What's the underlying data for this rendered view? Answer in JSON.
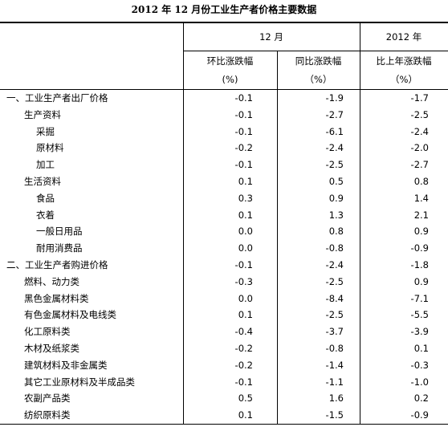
{
  "title": "2012 年 12 月份工业生产者价格主要数据",
  "header": {
    "group_month": "12 月",
    "group_year": "2012 年",
    "columns": [
      "环比涨跌幅",
      "同比涨跌幅",
      "比上年涨跌幅"
    ],
    "units": [
      "(%)",
      "（%）",
      "（%）"
    ]
  },
  "table": {
    "rows": [
      [
        "一、工业生产者出厂价格",
        "-0.1",
        "-1.9",
        "-1.7"
      ],
      [
        "生产资料",
        "-0.1",
        "-2.7",
        "-2.5"
      ],
      [
        "采掘",
        "-0.1",
        "-6.1",
        "-2.4"
      ],
      [
        "原材料",
        "-0.2",
        "-2.4",
        "-2.0"
      ],
      [
        "加工",
        "-0.1",
        "-2.5",
        "-2.7"
      ],
      [
        "生活资料",
        "0.1",
        "0.5",
        "0.8"
      ],
      [
        "食品",
        "0.3",
        "0.9",
        "1.4"
      ],
      [
        "衣着",
        "0.1",
        "1.3",
        "2.1"
      ],
      [
        "一般日用品",
        "0.0",
        "0.8",
        "0.9"
      ],
      [
        "耐用消费品",
        "0.0",
        "-0.8",
        "-0.9"
      ],
      [
        "二、工业生产者购进价格",
        "-0.1",
        "-2.4",
        "-1.8"
      ],
      [
        "燃料、动力类",
        "-0.3",
        "-2.5",
        "0.9"
      ],
      [
        "黑色金属材料类",
        "0.0",
        "-8.4",
        "-7.1"
      ],
      [
        "有色金属材料及电线类",
        "0.1",
        "-2.5",
        "-5.5"
      ],
      [
        "化工原料类",
        "-0.4",
        "-3.7",
        "-3.9"
      ],
      [
        "木材及纸浆类",
        "-0.2",
        "-0.8",
        "0.1"
      ],
      [
        "建筑材料及非金属类",
        "-0.2",
        "-1.4",
        "-0.3"
      ],
      [
        "其它工业原材料及半成品类",
        "-0.1",
        "-1.1",
        "-1.0"
      ],
      [
        "农副产品类",
        "0.5",
        "1.6",
        "0.2"
      ],
      [
        "纺织原料类",
        "0.1",
        "-1.5",
        "-0.9"
      ]
    ]
  }
}
